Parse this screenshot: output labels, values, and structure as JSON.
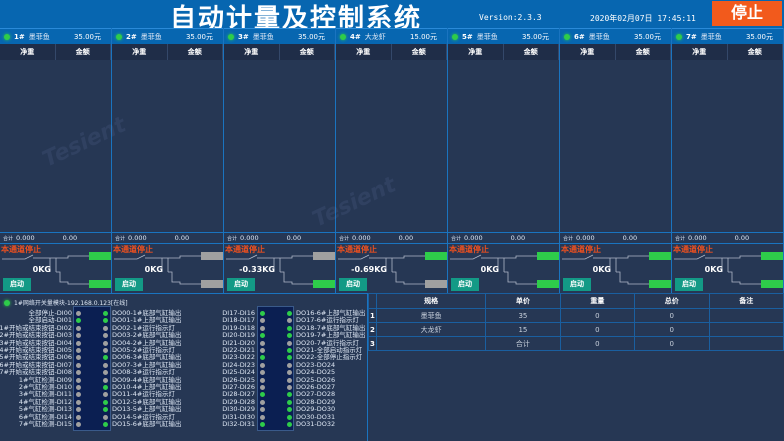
{
  "header": {
    "title": "自动计量及控制系统",
    "version": "Version:2.3.3",
    "datetime": "2020年02月07日  17:45:11",
    "stop_label": "停止"
  },
  "colors": {
    "accent": "#0766b0",
    "on": "#2ecc4a",
    "off": "#a0a0a0",
    "stop_text": "#f0501e",
    "stop_button": "#f25a1c",
    "start_button": "#139a86"
  },
  "channel_labels": {
    "net_weight": "净重",
    "amount": "金额",
    "total": "合计",
    "state": "本通道停止",
    "start": "启动"
  },
  "channels": [
    {
      "num": "1#",
      "name": "墨菲鱼",
      "price": "35.00元",
      "total_weight": "0.000",
      "total_amount": "0.00",
      "weight": "0KG",
      "valve_top": true,
      "valve_bottom": true
    },
    {
      "num": "2#",
      "name": "墨菲鱼",
      "price": "35.00元",
      "total_weight": "0.000",
      "total_amount": "0.00",
      "weight": "0KG",
      "valve_top": false,
      "valve_bottom": false
    },
    {
      "num": "3#",
      "name": "墨菲鱼",
      "price": "35.00元",
      "total_weight": "0.000",
      "total_amount": "0.00",
      "weight": "-0.33KG",
      "valve_top": false,
      "valve_bottom": true
    },
    {
      "num": "4#",
      "name": "大龙虾",
      "price": "15.00元",
      "total_weight": "0.000",
      "total_amount": "0.00",
      "weight": "-0.69KG",
      "valve_top": true,
      "valve_bottom": false
    },
    {
      "num": "5#",
      "name": "墨菲鱼",
      "price": "35.00元",
      "total_weight": "0.000",
      "total_amount": "0.00",
      "weight": "0KG",
      "valve_top": true,
      "valve_bottom": true
    },
    {
      "num": "6#",
      "name": "墨菲鱼",
      "price": "35.00元",
      "total_weight": "0.000",
      "total_amount": "0.00",
      "weight": "0KG",
      "valve_top": true,
      "valve_bottom": true
    },
    {
      "num": "7#",
      "name": "墨菲鱼",
      "price": "35.00元",
      "total_weight": "0.000",
      "total_amount": "0.00",
      "weight": "0KG",
      "valve_top": true,
      "valve_bottom": true
    }
  ],
  "io": {
    "module": "1#网络开关量模块-192.168.0.123[在线]",
    "left_di": [
      {
        "label": "全部停止-DI00",
        "on": false
      },
      {
        "label": "全部启动-DI01",
        "on": true
      },
      {
        "label": "1#开始或结束按钮-DI02",
        "on": false
      },
      {
        "label": "2#开始或结束按钮-DI03",
        "on": false
      },
      {
        "label": "3#开始或结束按钮-DI04",
        "on": false
      },
      {
        "label": "4#开始或结束按钮-DI05",
        "on": false
      },
      {
        "label": "5#开始或结束按钮-DI06",
        "on": false
      },
      {
        "label": "6#开始或结束按钮-DI07",
        "on": false
      },
      {
        "label": "7#开始或结束按钮-DI08",
        "on": false
      },
      {
        "label": "1#气缸检测-DI09",
        "on": false
      },
      {
        "label": "2#气缸检测-DI10",
        "on": false
      },
      {
        "label": "3#气缸检测-DI11",
        "on": false
      },
      {
        "label": "4#气缸检测-DI12",
        "on": false
      },
      {
        "label": "5#气缸检测-DI13",
        "on": false
      },
      {
        "label": "6#气缸检测-DI14",
        "on": false
      },
      {
        "label": "7#气缸检测-DI15",
        "on": false
      }
    ],
    "left_do": [
      {
        "label": "DO00-1#底部气缸输出",
        "on": true
      },
      {
        "label": "DO01-1#上部气缸输出",
        "on": true
      },
      {
        "label": "DO02-1#运行指示灯",
        "on": false
      },
      {
        "label": "DO03-2#底部气缸输出",
        "on": false
      },
      {
        "label": "DO04-2#上部气缸输出",
        "on": false
      },
      {
        "label": "DO05-2#运行指示灯",
        "on": false
      },
      {
        "label": "DO06-3#底部气缸输出",
        "on": true
      },
      {
        "label": "DO07-3#上部气缸输出",
        "on": false
      },
      {
        "label": "DO08-3#运行指示灯",
        "on": false
      },
      {
        "label": "DO09-4#底部气缸输出",
        "on": false
      },
      {
        "label": "DO10-4#上部气缸输出",
        "on": true
      },
      {
        "label": "DO11-4#运行指示灯",
        "on": false
      },
      {
        "label": "DO12-5#底部气缸输出",
        "on": true
      },
      {
        "label": "DO13-5#上部气缸输出",
        "on": true
      },
      {
        "label": "DO14-5#运行指示灯",
        "on": false
      },
      {
        "label": "DO15-6#底部气缸输出",
        "on": true
      }
    ],
    "right_di": [
      {
        "label": "DI17-DI16",
        "on": true
      },
      {
        "label": "DI18-DI17",
        "on": false
      },
      {
        "label": "DI19-DI18",
        "on": false
      },
      {
        "label": "DI20-DI19",
        "on": true
      },
      {
        "label": "DI21-DI20",
        "on": false
      },
      {
        "label": "DI22-DI21",
        "on": false
      },
      {
        "label": "DI23-DI22",
        "on": true
      },
      {
        "label": "DI24-DI23",
        "on": false
      },
      {
        "label": "DI25-DI24",
        "on": false
      },
      {
        "label": "DI26-DI25",
        "on": false
      },
      {
        "label": "DI27-DI26",
        "on": false
      },
      {
        "label": "DI28-DI27",
        "on": true
      },
      {
        "label": "DI29-DI28",
        "on": false
      },
      {
        "label": "DI30-DI29",
        "on": false
      },
      {
        "label": "DI31-DI30",
        "on": false
      },
      {
        "label": "DI32-DI31",
        "on": true
      }
    ],
    "right_do": [
      {
        "label": "DO16-6#上部气缸输出",
        "on": true
      },
      {
        "label": "DO17-6#运行指示灯",
        "on": false
      },
      {
        "label": "DO18-7#底部气缸输出",
        "on": true
      },
      {
        "label": "DO19-7#上部气缸输出",
        "on": true
      },
      {
        "label": "DO20-7#运行指示灯",
        "on": false
      },
      {
        "label": "DO21-全部启动指示灯",
        "on": true
      },
      {
        "label": "DO22-全部停止指示灯",
        "on": true
      },
      {
        "label": "DO23-DO24",
        "on": false
      },
      {
        "label": "DO24-DO25",
        "on": false
      },
      {
        "label": "DO25-DO26",
        "on": false
      },
      {
        "label": "DO26-DO27",
        "on": false
      },
      {
        "label": "DO27-DO28",
        "on": true
      },
      {
        "label": "DO28-DO29",
        "on": true
      },
      {
        "label": "DO29-DO30",
        "on": true
      },
      {
        "label": "DO30-DO31",
        "on": true
      },
      {
        "label": "DO31-DO32",
        "on": true
      }
    ]
  },
  "table": {
    "headers": [
      "规格",
      "单价",
      "重量",
      "总价",
      "备注"
    ],
    "rows": [
      {
        "n": "1",
        "spec": "墨菲鱼",
        "price": "35",
        "weight": "0",
        "total": "0",
        "note": ""
      },
      {
        "n": "2",
        "spec": "大龙虾",
        "price": "15",
        "weight": "0",
        "total": "0",
        "note": ""
      },
      {
        "n": "3",
        "spec": "",
        "price": "合计",
        "weight": "0",
        "total": "0",
        "note": ""
      }
    ]
  }
}
